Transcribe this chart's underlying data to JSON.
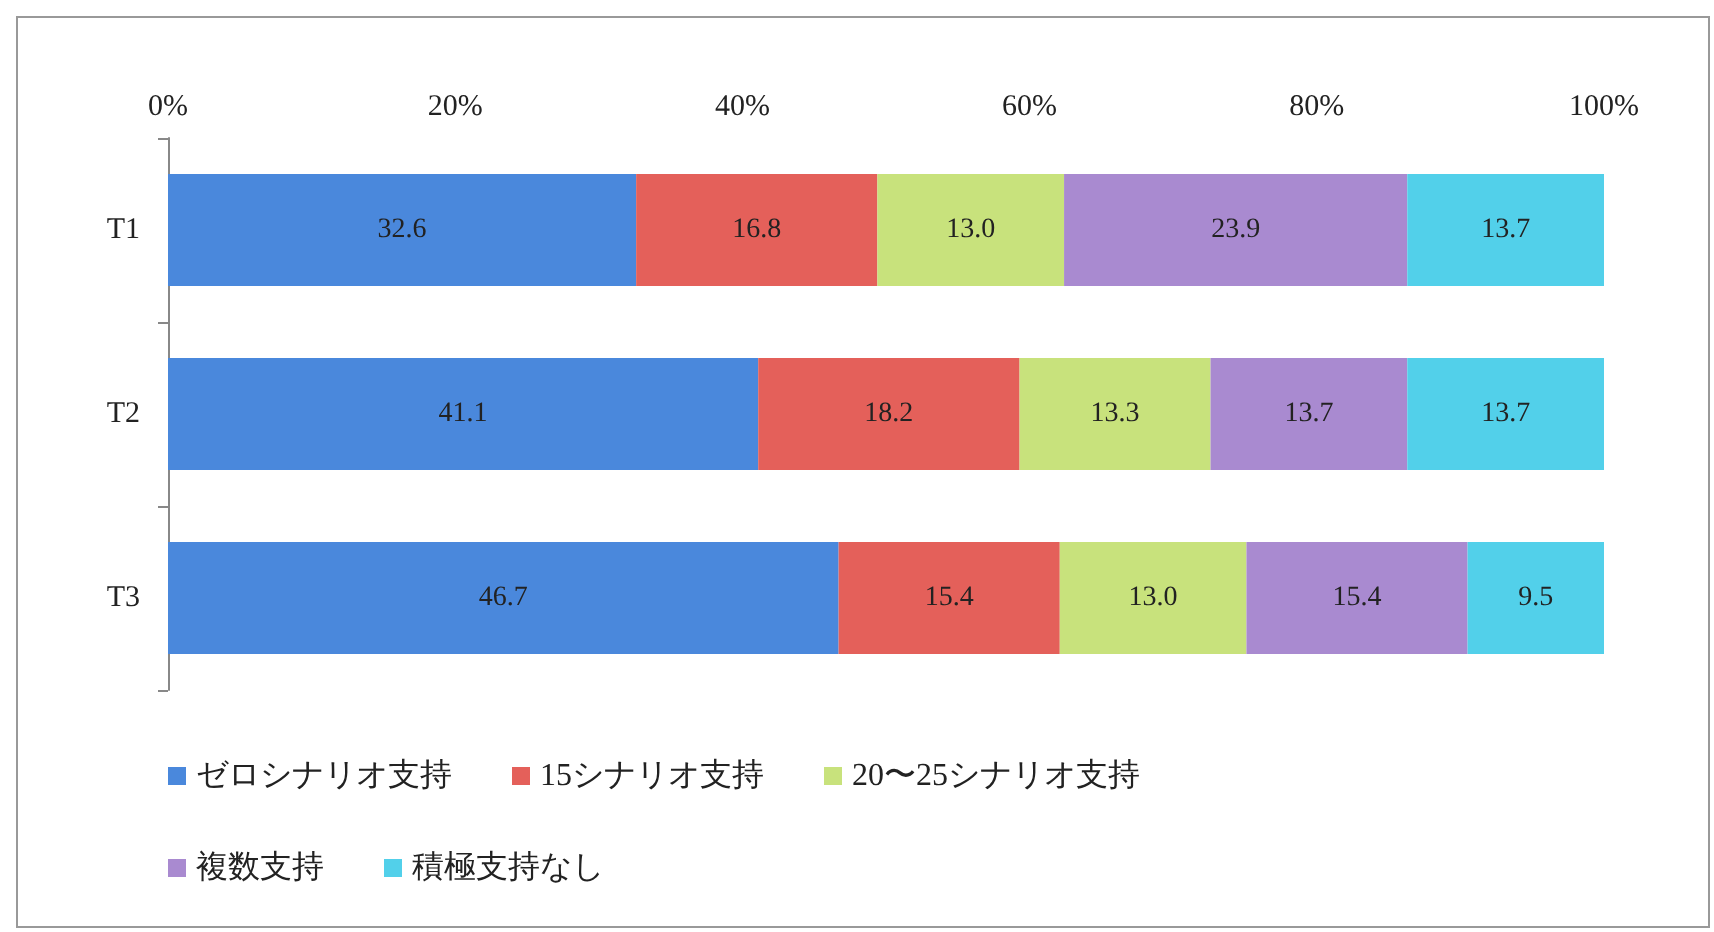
{
  "chart_data": {
    "type": "bar",
    "orientation": "horizontal",
    "stacked": true,
    "categories": [
      "T1",
      "T2",
      "T3"
    ],
    "xlim": [
      0,
      100
    ],
    "xticks": [
      {
        "value": 0,
        "label": "0%"
      },
      {
        "value": 20,
        "label": "20%"
      },
      {
        "value": 40,
        "label": "40%"
      },
      {
        "value": 60,
        "label": "60%"
      },
      {
        "value": 80,
        "label": "80%"
      },
      {
        "value": 100,
        "label": "100%"
      }
    ],
    "grid": false,
    "legend": "bottom",
    "series": [
      {
        "name": "ゼロシナリオ支持",
        "color": "#4a88dc",
        "values": [
          32.6,
          41.1,
          46.7
        ],
        "value_labels": [
          "32.6",
          "41.1",
          "46.7"
        ]
      },
      {
        "name": "15シナリオ支持",
        "color": "#e4605a",
        "values": [
          16.8,
          18.2,
          15.4
        ],
        "value_labels": [
          "16.8",
          "18.2",
          "15.4"
        ]
      },
      {
        "name": "20〜25シナリオ支持",
        "color": "#c8e27c",
        "values": [
          13.0,
          13.3,
          13.0
        ],
        "value_labels": [
          "13.0",
          "13.3",
          "13.0"
        ]
      },
      {
        "name": "複数支持",
        "color": "#a98ad0",
        "values": [
          23.9,
          13.7,
          15.4
        ],
        "value_labels": [
          "23.9",
          "13.7",
          "15.4"
        ]
      },
      {
        "name": "積極支持なし",
        "color": "#52d0ea",
        "values": [
          13.7,
          13.7,
          9.5
        ],
        "value_labels": [
          "13.7",
          "13.7",
          "9.5"
        ]
      }
    ]
  }
}
